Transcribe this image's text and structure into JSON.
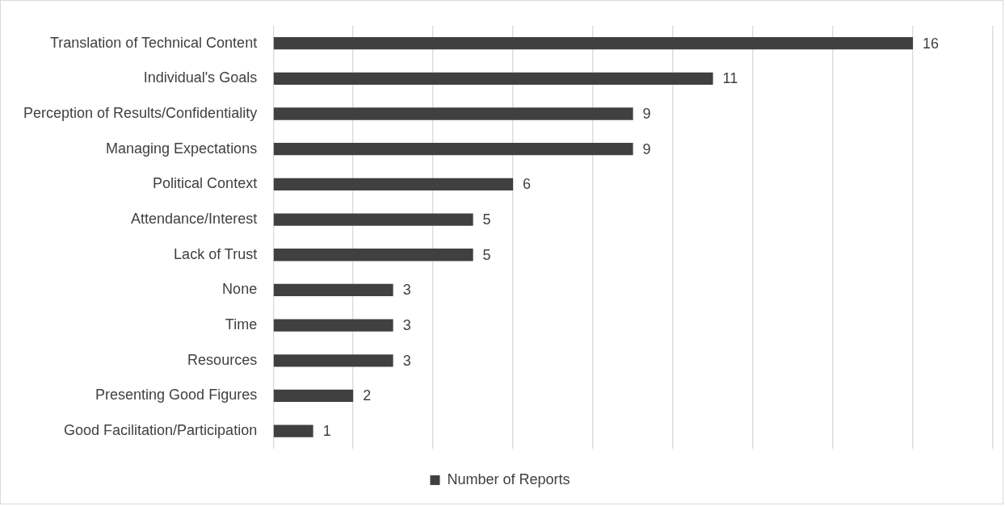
{
  "chart_data": {
    "type": "bar",
    "orientation": "horizontal",
    "categories": [
      "Translation of Technical Content",
      "Individual's Goals",
      "Perception of Results/Confidentiality",
      "Managing Expectations",
      "Political Context",
      "Attendance/Interest",
      "Lack of Trust",
      "None",
      "Time",
      "Resources",
      "Presenting Good Figures",
      "Good Facilitation/Participation"
    ],
    "series": [
      {
        "name": "Number of Reports",
        "color": "#404040",
        "values": [
          16,
          11,
          9,
          9,
          6,
          5,
          5,
          3,
          3,
          3,
          2,
          1
        ]
      }
    ],
    "xlim": [
      0,
      18
    ],
    "xticks": [
      {
        "value": 0,
        "label": null
      },
      {
        "value": 2,
        "label": null
      },
      {
        "value": 4,
        "label": null
      },
      {
        "value": 6,
        "label": null
      },
      {
        "value": 8,
        "label": null
      },
      {
        "value": 10,
        "label": null
      },
      {
        "value": 12,
        "label": null
      },
      {
        "value": 14,
        "label": null
      },
      {
        "value": 16,
        "label": null
      },
      {
        "value": 18,
        "label": null
      }
    ],
    "tick_labels": "y",
    "grid": "x",
    "data_labels": true,
    "legend": "bottom"
  }
}
